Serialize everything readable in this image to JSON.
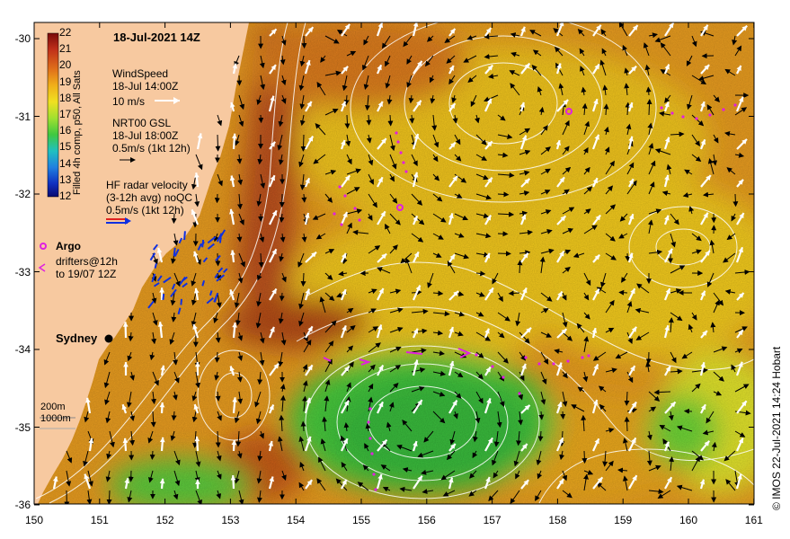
{
  "title": "18-Jul-2021 14Z",
  "colorbar": {
    "label": "Filled 4h comp, p50, All Sats",
    "ticks": [
      "22",
      "21",
      "20",
      "19",
      "18",
      "17",
      "16",
      "15",
      "14",
      "13",
      "12"
    ]
  },
  "legend": {
    "wind_title": "WindSpeed",
    "wind_time": "18-Jul 14:00Z",
    "wind_scale": "10 m/s",
    "gsl_title": "NRT00 GSL",
    "gsl_time": "18-Jul 18:00Z",
    "gsl_scale": "0.5m/s (1kt 12h)",
    "hf_title": "HF radar velocity",
    "hf_avg": "(3-12h avg) noQC",
    "hf_scale": "0.5m/s (1kt 12h)",
    "argo": "Argo",
    "drifters1": "drifters@12h",
    "drifters2": "to 19/07 12Z",
    "city": "Sydney",
    "iso1": "200m",
    "iso2": "1000m"
  },
  "axes": {
    "y_ticks": [
      "-30",
      "-31",
      "-32",
      "-33",
      "-34",
      "-35",
      "-36"
    ],
    "x_ticks": [
      "150",
      "151",
      "152",
      "153",
      "154",
      "155",
      "156",
      "157",
      "158",
      "159",
      "160",
      "161"
    ]
  },
  "credit": "© IMOS 22-Jul-2021 14:24 Hobart",
  "colors": {
    "land": "#f7c9a0",
    "sst_warm": "#e08a1a",
    "sst_hot": "#b03a10",
    "eddy": "#44c43a",
    "contour": "#ffffff",
    "argo": "#e020e0",
    "hf_radar": "#1030e0"
  }
}
